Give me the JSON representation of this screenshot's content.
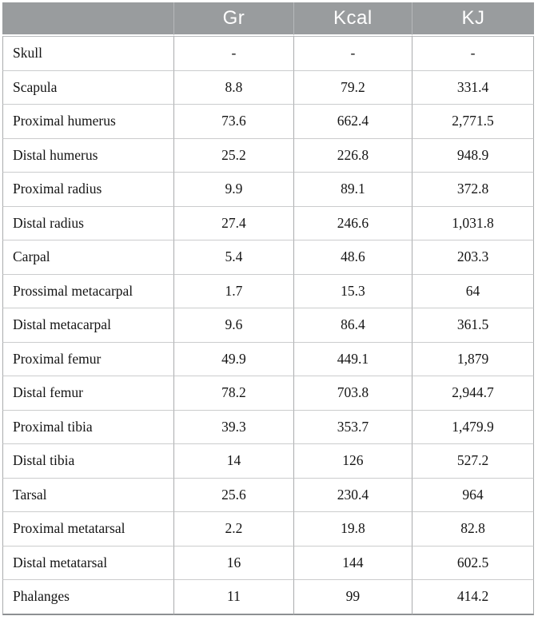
{
  "colors": {
    "header_background": "#999c9e",
    "header_text": "#ffffff",
    "header_divider": "#b6b8ba",
    "row_divider": "#cbcccd",
    "column_divider": "#aaacae",
    "bottom_border": "#8d9092",
    "body_text": "#141414"
  },
  "table": {
    "columns": [
      {
        "label": ""
      },
      {
        "label": "Gr"
      },
      {
        "label": "Kcal"
      },
      {
        "label": "KJ"
      }
    ],
    "rows": [
      {
        "label": "Skull",
        "gr": "-",
        "kcal": "-",
        "kj": "-"
      },
      {
        "label": "Scapula",
        "gr": "8.8",
        "kcal": "79.2",
        "kj": "331.4"
      },
      {
        "label": "Proximal humerus",
        "gr": "73.6",
        "kcal": "662.4",
        "kj": "2,771.5"
      },
      {
        "label": "Distal humerus",
        "gr": "25.2",
        "kcal": "226.8",
        "kj": "948.9"
      },
      {
        "label": "Proximal radius",
        "gr": "9.9",
        "kcal": "89.1",
        "kj": "372.8"
      },
      {
        "label": "Distal radius",
        "gr": "27.4",
        "kcal": "246.6",
        "kj": "1,031.8"
      },
      {
        "label": "Carpal",
        "gr": "5.4",
        "kcal": "48.6",
        "kj": "203.3"
      },
      {
        "label": "Prossimal metacarpal",
        "gr": "1.7",
        "kcal": "15.3",
        "kj": "64"
      },
      {
        "label": "Distal metacarpal",
        "gr": "9.6",
        "kcal": "86.4",
        "kj": "361.5"
      },
      {
        "label": "Proximal femur",
        "gr": "49.9",
        "kcal": "449.1",
        "kj": "1,879"
      },
      {
        "label": "Distal femur",
        "gr": "78.2",
        "kcal": "703.8",
        "kj": "2,944.7"
      },
      {
        "label": "Proximal tibia",
        "gr": "39.3",
        "kcal": "353.7",
        "kj": "1,479.9"
      },
      {
        "label": "Distal tibia",
        "gr": "14",
        "kcal": "126",
        "kj": "527.2"
      },
      {
        "label": "Tarsal",
        "gr": "25.6",
        "kcal": "230.4",
        "kj": "964"
      },
      {
        "label": "Proximal metatarsal",
        "gr": "2.2",
        "kcal": "19.8",
        "kj": "82.8"
      },
      {
        "label": "Distal metatarsal",
        "gr": "16",
        "kcal": "144",
        "kj": "602.5"
      },
      {
        "label": "Phalanges",
        "gr": "11",
        "kcal": "99",
        "kj": "414.2"
      }
    ]
  },
  "chart_data": {
    "type": "table",
    "title": "",
    "columns": [
      "",
      "Gr",
      "Kcal",
      "KJ"
    ],
    "rows": [
      [
        "Skull",
        "-",
        "-",
        "-"
      ],
      [
        "Scapula",
        8.8,
        79.2,
        331.4
      ],
      [
        "Proximal humerus",
        73.6,
        662.4,
        2771.5
      ],
      [
        "Distal humerus",
        25.2,
        226.8,
        948.9
      ],
      [
        "Proximal radius",
        9.9,
        89.1,
        372.8
      ],
      [
        "Distal radius",
        27.4,
        246.6,
        1031.8
      ],
      [
        "Carpal",
        5.4,
        48.6,
        203.3
      ],
      [
        "Prossimal metacarpal",
        1.7,
        15.3,
        64
      ],
      [
        "Distal metacarpal",
        9.6,
        86.4,
        361.5
      ],
      [
        "Proximal femur",
        49.9,
        449.1,
        1879
      ],
      [
        "Distal femur",
        78.2,
        703.8,
        2944.7
      ],
      [
        "Proximal tibia",
        39.3,
        353.7,
        1479.9
      ],
      [
        "Distal tibia",
        14,
        126,
        527.2
      ],
      [
        "Tarsal",
        25.6,
        230.4,
        964
      ],
      [
        "Proximal metatarsal",
        2.2,
        19.8,
        82.8
      ],
      [
        "Distal metatarsal",
        16,
        144,
        602.5
      ],
      [
        "Phalanges",
        11,
        99,
        414.2
      ]
    ]
  }
}
